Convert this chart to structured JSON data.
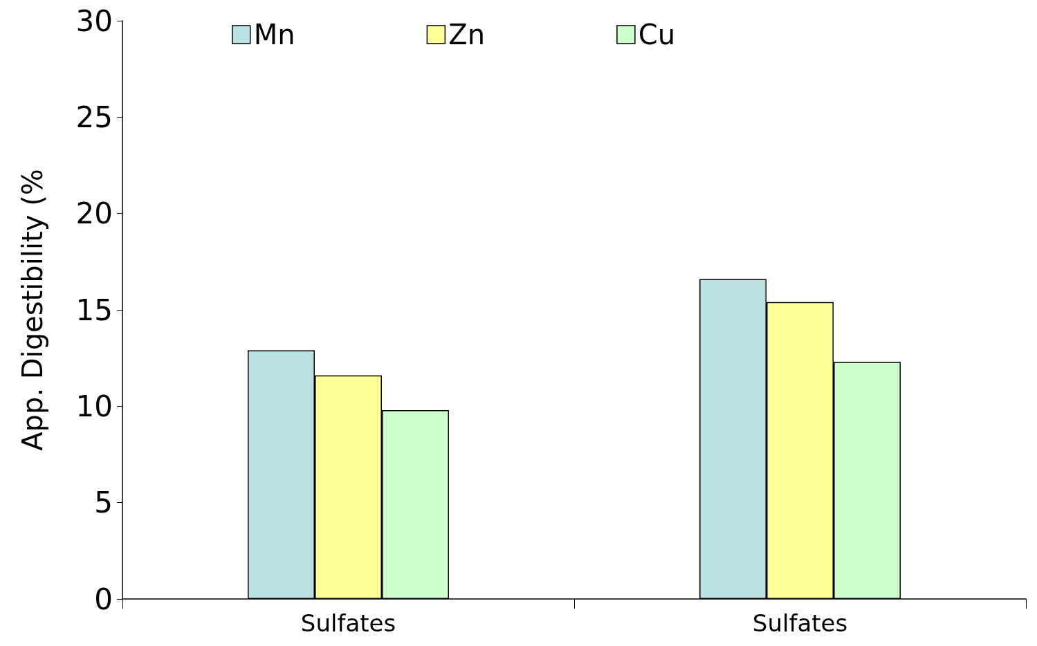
{
  "chart_data": {
    "type": "bar",
    "ylabel": "App. Digestibility (%",
    "categories": [
      "Sulfates",
      "Sulfates"
    ],
    "series": [
      {
        "name": "Mn",
        "color": "#b9e0e3",
        "values": [
          12.9,
          16.6
        ]
      },
      {
        "name": "Zn",
        "color": "#ffff99",
        "values": [
          11.6,
          15.4
        ]
      },
      {
        "name": "Cu",
        "color": "#ccffcc",
        "values": [
          9.8,
          12.3
        ]
      }
    ],
    "ylim": [
      0,
      30
    ],
    "yticks": [
      0,
      5,
      10,
      15,
      20,
      25,
      30
    ],
    "grid": false,
    "legend": "top"
  }
}
